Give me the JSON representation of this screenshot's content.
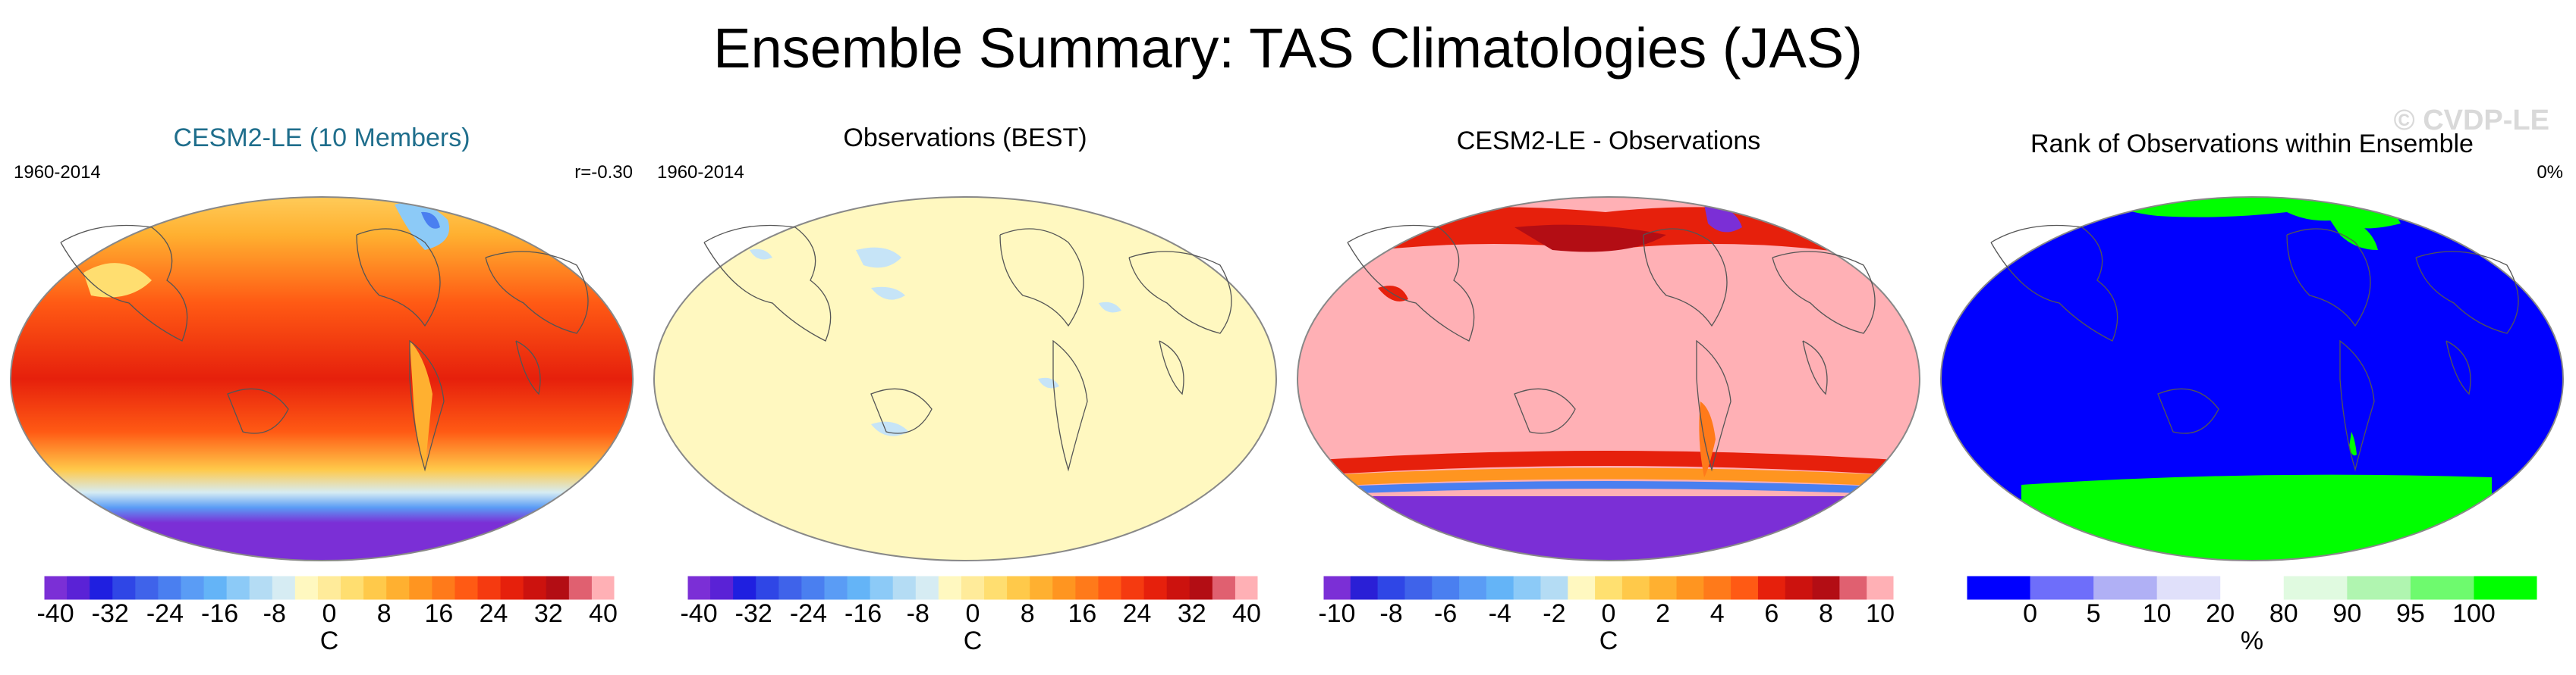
{
  "figure": {
    "title": "Ensemble Summary: TAS Climatologies (JAS)",
    "watermark": "© CVDP-LE"
  },
  "panels": [
    {
      "title": "CESM2-LE (10 Members)",
      "title_color": "#1f6e8c",
      "left_label": "1960-2014",
      "right_label": "r=-0.30",
      "colorbar_unit": "C"
    },
    {
      "title": "Observations (BEST)",
      "title_color": "#000000",
      "left_label": "1960-2014",
      "right_label": "",
      "colorbar_unit": "C"
    },
    {
      "title": "CESM2-LE - Observations",
      "title_color": "#000000",
      "left_label": "",
      "right_label": "",
      "colorbar_unit": "C"
    },
    {
      "title": "Rank of Observations within Ensemble",
      "title_color": "#000000",
      "left_label": "",
      "right_label": "0%",
      "colorbar_unit": "%"
    }
  ],
  "chart_data": [
    {
      "type": "heatmap",
      "title": "CESM2-LE (10 Members)",
      "period": "1960-2014",
      "pattern_correlation": "r=-0.30",
      "units": "C",
      "colorbar_ticks": [
        "-40",
        "-32",
        "-24",
        "-16",
        "-8",
        "0",
        "8",
        "16",
        "24",
        "32",
        "40"
      ],
      "colorbar_range": [
        -40,
        40
      ],
      "colors": [
        "#7b2fd6",
        "#5a22d6",
        "#1f1fe0",
        "#2f46e6",
        "#3f63ea",
        "#4a7ff0",
        "#5a9cf5",
        "#64b4f7",
        "#8ccaf7",
        "#b4dcf4",
        "#d6ecf3",
        "#fff8c0",
        "#ffeb9a",
        "#ffde70",
        "#ffc94a",
        "#ffb030",
        "#ff9520",
        "#ff7a1a",
        "#ff5a14",
        "#f53a10",
        "#e6200c",
        "#cc120e",
        "#b30d14",
        "#e06070",
        "#ffb0b5"
      ],
      "description_regions": {
        "tropics_range_C": [
          24,
          32
        ],
        "antarctica_below_C": -40
      }
    },
    {
      "type": "heatmap",
      "title": "Observations (BEST)",
      "period": "1960-2014",
      "units": "C",
      "colorbar_ticks": [
        "-40",
        "-32",
        "-24",
        "-16",
        "-8",
        "0",
        "8",
        "16",
        "24",
        "32",
        "40"
      ],
      "colorbar_range": [
        -40,
        40
      ],
      "colors": [
        "#7b2fd6",
        "#5a22d6",
        "#1f1fe0",
        "#2f46e6",
        "#3f63ea",
        "#4a7ff0",
        "#5a9cf5",
        "#64b4f7",
        "#8ccaf7",
        "#b4dcf4",
        "#d6ecf3",
        "#fff8c0",
        "#ffeb9a",
        "#ffde70",
        "#ffc94a",
        "#ffb030",
        "#ff9520",
        "#ff7a1a",
        "#ff5a14",
        "#f53a10",
        "#e6200c",
        "#cc120e",
        "#b30d14",
        "#e06070",
        "#ffb0b5"
      ],
      "dominant_color": "#fff8c0"
    },
    {
      "type": "heatmap",
      "title": "CESM2-LE - Observations",
      "units": "C",
      "colorbar_ticks": [
        "-10",
        "-8",
        "-6",
        "-4",
        "-2",
        "0",
        "2",
        "4",
        "6",
        "8",
        "10"
      ],
      "colorbar_range": [
        -10,
        10
      ],
      "colors": [
        "#7b2fd6",
        "#2a1fd6",
        "#2f46e6",
        "#3f63ea",
        "#4a7ff0",
        "#5a9cf5",
        "#64b4f7",
        "#8ccaf7",
        "#b4dcf4",
        "#fff8c0",
        "#ffe070",
        "#ffc94a",
        "#ffb030",
        "#ff9520",
        "#ff7a1a",
        "#ff5a14",
        "#e6200c",
        "#cc120e",
        "#b30d14",
        "#e06070",
        "#ffb0b5"
      ],
      "dominant_color": "#ffb0b5"
    },
    {
      "type": "heatmap",
      "title": "Rank of Observations within Ensemble",
      "units": "%",
      "percent_outside": "0%",
      "colorbar_ticks": [
        "0",
        "5",
        "10",
        "20",
        "80",
        "90",
        "95",
        "100"
      ],
      "colorbar_bounds": [
        0,
        5,
        10,
        20,
        80,
        90,
        95,
        100
      ],
      "colors": [
        "#0000ff",
        "#6e6efa",
        "#b0b0f5",
        "#e0e0fa",
        "#ffffff",
        "#e0fae0",
        "#b0f5b0",
        "#6efa6e",
        "#00ff00"
      ],
      "dominant_color": "#0000ff",
      "polar_color": "#00ff00"
    }
  ]
}
